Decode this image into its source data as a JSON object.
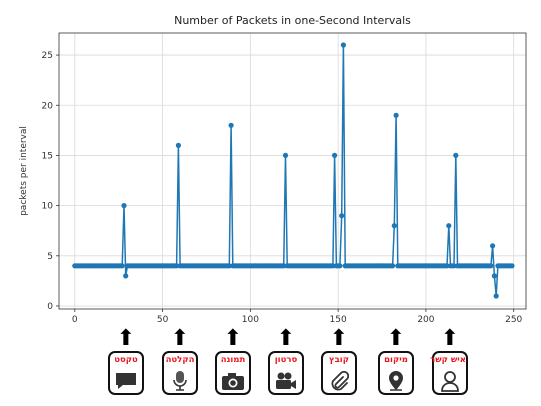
{
  "chart_data": {
    "type": "line",
    "title": "Number of Packets in one-Second Intervals",
    "ylabel": "packets per interval",
    "xlim": [
      -9,
      257
    ],
    "ylim": [
      -0.3,
      27.2
    ],
    "xticks": [
      0,
      50,
      100,
      150,
      200,
      250
    ],
    "yticks": [
      0,
      5,
      10,
      15,
      20,
      25
    ],
    "grid": true,
    "series": [
      {
        "color": "#1f77b4",
        "x": [
          0,
          1,
          2,
          3,
          4,
          5,
          6,
          7,
          8,
          9,
          10,
          11,
          12,
          13,
          14,
          15,
          16,
          17,
          18,
          19,
          20,
          21,
          22,
          23,
          24,
          25,
          26,
          27,
          28,
          29,
          30,
          31,
          32,
          33,
          34,
          35,
          36,
          37,
          38,
          39,
          40,
          41,
          42,
          43,
          44,
          45,
          46,
          47,
          48,
          49,
          50,
          51,
          52,
          53,
          54,
          55,
          56,
          57,
          58,
          59,
          60,
          61,
          62,
          63,
          64,
          65,
          66,
          67,
          68,
          69,
          70,
          71,
          72,
          73,
          74,
          75,
          76,
          77,
          78,
          79,
          80,
          81,
          82,
          83,
          84,
          85,
          86,
          87,
          88,
          89,
          90,
          91,
          92,
          93,
          94,
          95,
          96,
          97,
          98,
          99,
          100,
          101,
          102,
          103,
          104,
          105,
          106,
          107,
          108,
          109,
          110,
          111,
          112,
          113,
          114,
          115,
          116,
          117,
          118,
          119,
          120,
          121,
          122,
          123,
          124,
          125,
          126,
          127,
          128,
          129,
          130,
          131,
          132,
          133,
          134,
          135,
          136,
          137,
          138,
          139,
          140,
          141,
          142,
          143,
          144,
          145,
          146,
          147,
          148,
          149,
          150,
          151,
          152,
          153,
          154,
          155,
          156,
          157,
          158,
          159,
          160,
          161,
          162,
          163,
          164,
          165,
          166,
          167,
          168,
          169,
          170,
          171,
          172,
          173,
          174,
          175,
          176,
          177,
          178,
          179,
          180,
          181,
          182,
          183,
          184,
          185,
          186,
          187,
          188,
          189,
          190,
          191,
          192,
          193,
          194,
          195,
          196,
          197,
          198,
          199,
          200,
          201,
          202,
          203,
          204,
          205,
          206,
          207,
          208,
          209,
          210,
          211,
          212,
          213,
          214,
          215,
          216,
          217,
          218,
          219,
          220,
          221,
          222,
          223,
          224,
          225,
          226,
          227,
          228,
          229,
          230,
          231,
          232,
          233,
          234,
          235,
          236,
          237,
          238,
          239,
          240,
          241,
          242,
          243,
          244,
          245,
          246,
          247,
          248,
          249
        ],
        "values": [
          4,
          4,
          4,
          4,
          4,
          4,
          4,
          4,
          4,
          4,
          4,
          4,
          4,
          4,
          4,
          4,
          4,
          4,
          4,
          4,
          4,
          4,
          4,
          4,
          4,
          4,
          4,
          4,
          10,
          3,
          4,
          4,
          4,
          4,
          4,
          4,
          4,
          4,
          4,
          4,
          4,
          4,
          4,
          4,
          4,
          4,
          4,
          4,
          4,
          4,
          4,
          4,
          4,
          4,
          4,
          4,
          4,
          4,
          4,
          16,
          4,
          4,
          4,
          4,
          4,
          4,
          4,
          4,
          4,
          4,
          4,
          4,
          4,
          4,
          4,
          4,
          4,
          4,
          4,
          4,
          4,
          4,
          4,
          4,
          4,
          4,
          4,
          4,
          4,
          18,
          4,
          4,
          4,
          4,
          4,
          4,
          4,
          4,
          4,
          4,
          4,
          4,
          4,
          4,
          4,
          4,
          4,
          4,
          4,
          4,
          4,
          4,
          4,
          4,
          4,
          4,
          4,
          4,
          4,
          4,
          15,
          4,
          4,
          4,
          4,
          4,
          4,
          4,
          4,
          4,
          4,
          4,
          4,
          4,
          4,
          4,
          4,
          4,
          4,
          4,
          4,
          4,
          4,
          4,
          4,
          4,
          4,
          4,
          15,
          4,
          4,
          4,
          9,
          26,
          4,
          4,
          4,
          4,
          4,
          4,
          4,
          4,
          4,
          4,
          4,
          4,
          4,
          4,
          4,
          4,
          4,
          4,
          4,
          4,
          4,
          4,
          4,
          4,
          4,
          4,
          4,
          4,
          8,
          19,
          4,
          4,
          4,
          4,
          4,
          4,
          4,
          4,
          4,
          4,
          4,
          4,
          4,
          4,
          4,
          4,
          4,
          4,
          4,
          4,
          4,
          4,
          4,
          4,
          4,
          4,
          4,
          4,
          4,
          8,
          4,
          4,
          4,
          15,
          4,
          4,
          4,
          4,
          4,
          4,
          4,
          4,
          4,
          4,
          4,
          4,
          4,
          4,
          4,
          4,
          4,
          4,
          4,
          4,
          6,
          3,
          1,
          4,
          4,
          4,
          4,
          4,
          4,
          4,
          4,
          4
        ]
      }
    ]
  },
  "icons": [
    {
      "label": "טקסט",
      "icon": "speech-bubble-icon"
    },
    {
      "label": "הקלטה",
      "icon": "microphone-icon"
    },
    {
      "label": "תמונה",
      "icon": "camera-icon"
    },
    {
      "label": "סרטון",
      "icon": "video-camera-icon"
    },
    {
      "label": "קובץ",
      "icon": "paperclip-icon"
    },
    {
      "label": "מיקום",
      "icon": "location-pin-icon"
    },
    {
      "label": "איש קשר",
      "icon": "contact-person-icon"
    }
  ]
}
